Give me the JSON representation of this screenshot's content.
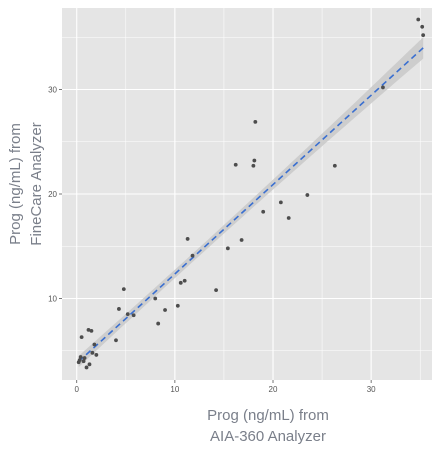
{
  "chart_data": {
    "type": "scatter",
    "title": "",
    "xlabel_lines": [
      "Prog (ng/mL) from",
      "AIA-360 Analyzer"
    ],
    "ylabel_lines": [
      "Prog (ng/mL) from",
      "FineCare Analyzer"
    ],
    "xlim": [
      -1.5,
      36.2
    ],
    "ylim": [
      2.2,
      37.8
    ],
    "x_ticks": [
      0,
      10,
      20,
      30
    ],
    "y_ticks": [
      10,
      20,
      30
    ],
    "grid": true,
    "legend": "none",
    "colors": {
      "panel": "#e5e5e5",
      "grid": "#ffffff",
      "points": "#4d4d4d",
      "fit_line": "#3a6fd0",
      "confidence_band": "#c9c9c9"
    },
    "fit": {
      "style": "dashed",
      "slope": 0.855,
      "intercept": 3.8,
      "band_min_halfwidth": 0.4,
      "band_spread": 0.0011
    },
    "points": [
      {
        "x": 0.2,
        "y": 3.9
      },
      {
        "x": 0.3,
        "y": 4.1
      },
      {
        "x": 0.4,
        "y": 4.4
      },
      {
        "x": 0.5,
        "y": 6.3
      },
      {
        "x": 0.7,
        "y": 4.0
      },
      {
        "x": 0.8,
        "y": 4.3
      },
      {
        "x": 1.0,
        "y": 3.4
      },
      {
        "x": 1.2,
        "y": 7.0
      },
      {
        "x": 1.3,
        "y": 3.7
      },
      {
        "x": 1.5,
        "y": 6.9
      },
      {
        "x": 1.6,
        "y": 4.8
      },
      {
        "x": 1.8,
        "y": 5.6
      },
      {
        "x": 2.0,
        "y": 4.6
      },
      {
        "x": 4.0,
        "y": 6.0
      },
      {
        "x": 4.3,
        "y": 9.0
      },
      {
        "x": 4.8,
        "y": 10.9
      },
      {
        "x": 5.2,
        "y": 8.5
      },
      {
        "x": 5.8,
        "y": 8.4
      },
      {
        "x": 8.0,
        "y": 10.0
      },
      {
        "x": 8.3,
        "y": 7.6
      },
      {
        "x": 9.0,
        "y": 8.9
      },
      {
        "x": 10.3,
        "y": 9.3
      },
      {
        "x": 10.6,
        "y": 11.5
      },
      {
        "x": 11.0,
        "y": 11.7
      },
      {
        "x": 11.3,
        "y": 15.7
      },
      {
        "x": 11.8,
        "y": 14.1
      },
      {
        "x": 14.2,
        "y": 10.8
      },
      {
        "x": 15.4,
        "y": 14.8
      },
      {
        "x": 16.2,
        "y": 22.8
      },
      {
        "x": 16.8,
        "y": 15.6
      },
      {
        "x": 18.0,
        "y": 22.7
      },
      {
        "x": 18.1,
        "y": 23.2
      },
      {
        "x": 18.2,
        "y": 26.9
      },
      {
        "x": 19.0,
        "y": 18.3
      },
      {
        "x": 20.8,
        "y": 19.2
      },
      {
        "x": 21.6,
        "y": 17.7
      },
      {
        "x": 23.5,
        "y": 19.9
      },
      {
        "x": 26.3,
        "y": 22.7
      },
      {
        "x": 31.2,
        "y": 30.2
      },
      {
        "x": 34.8,
        "y": 36.7
      },
      {
        "x": 35.2,
        "y": 36.0
      },
      {
        "x": 35.3,
        "y": 35.2
      }
    ]
  }
}
